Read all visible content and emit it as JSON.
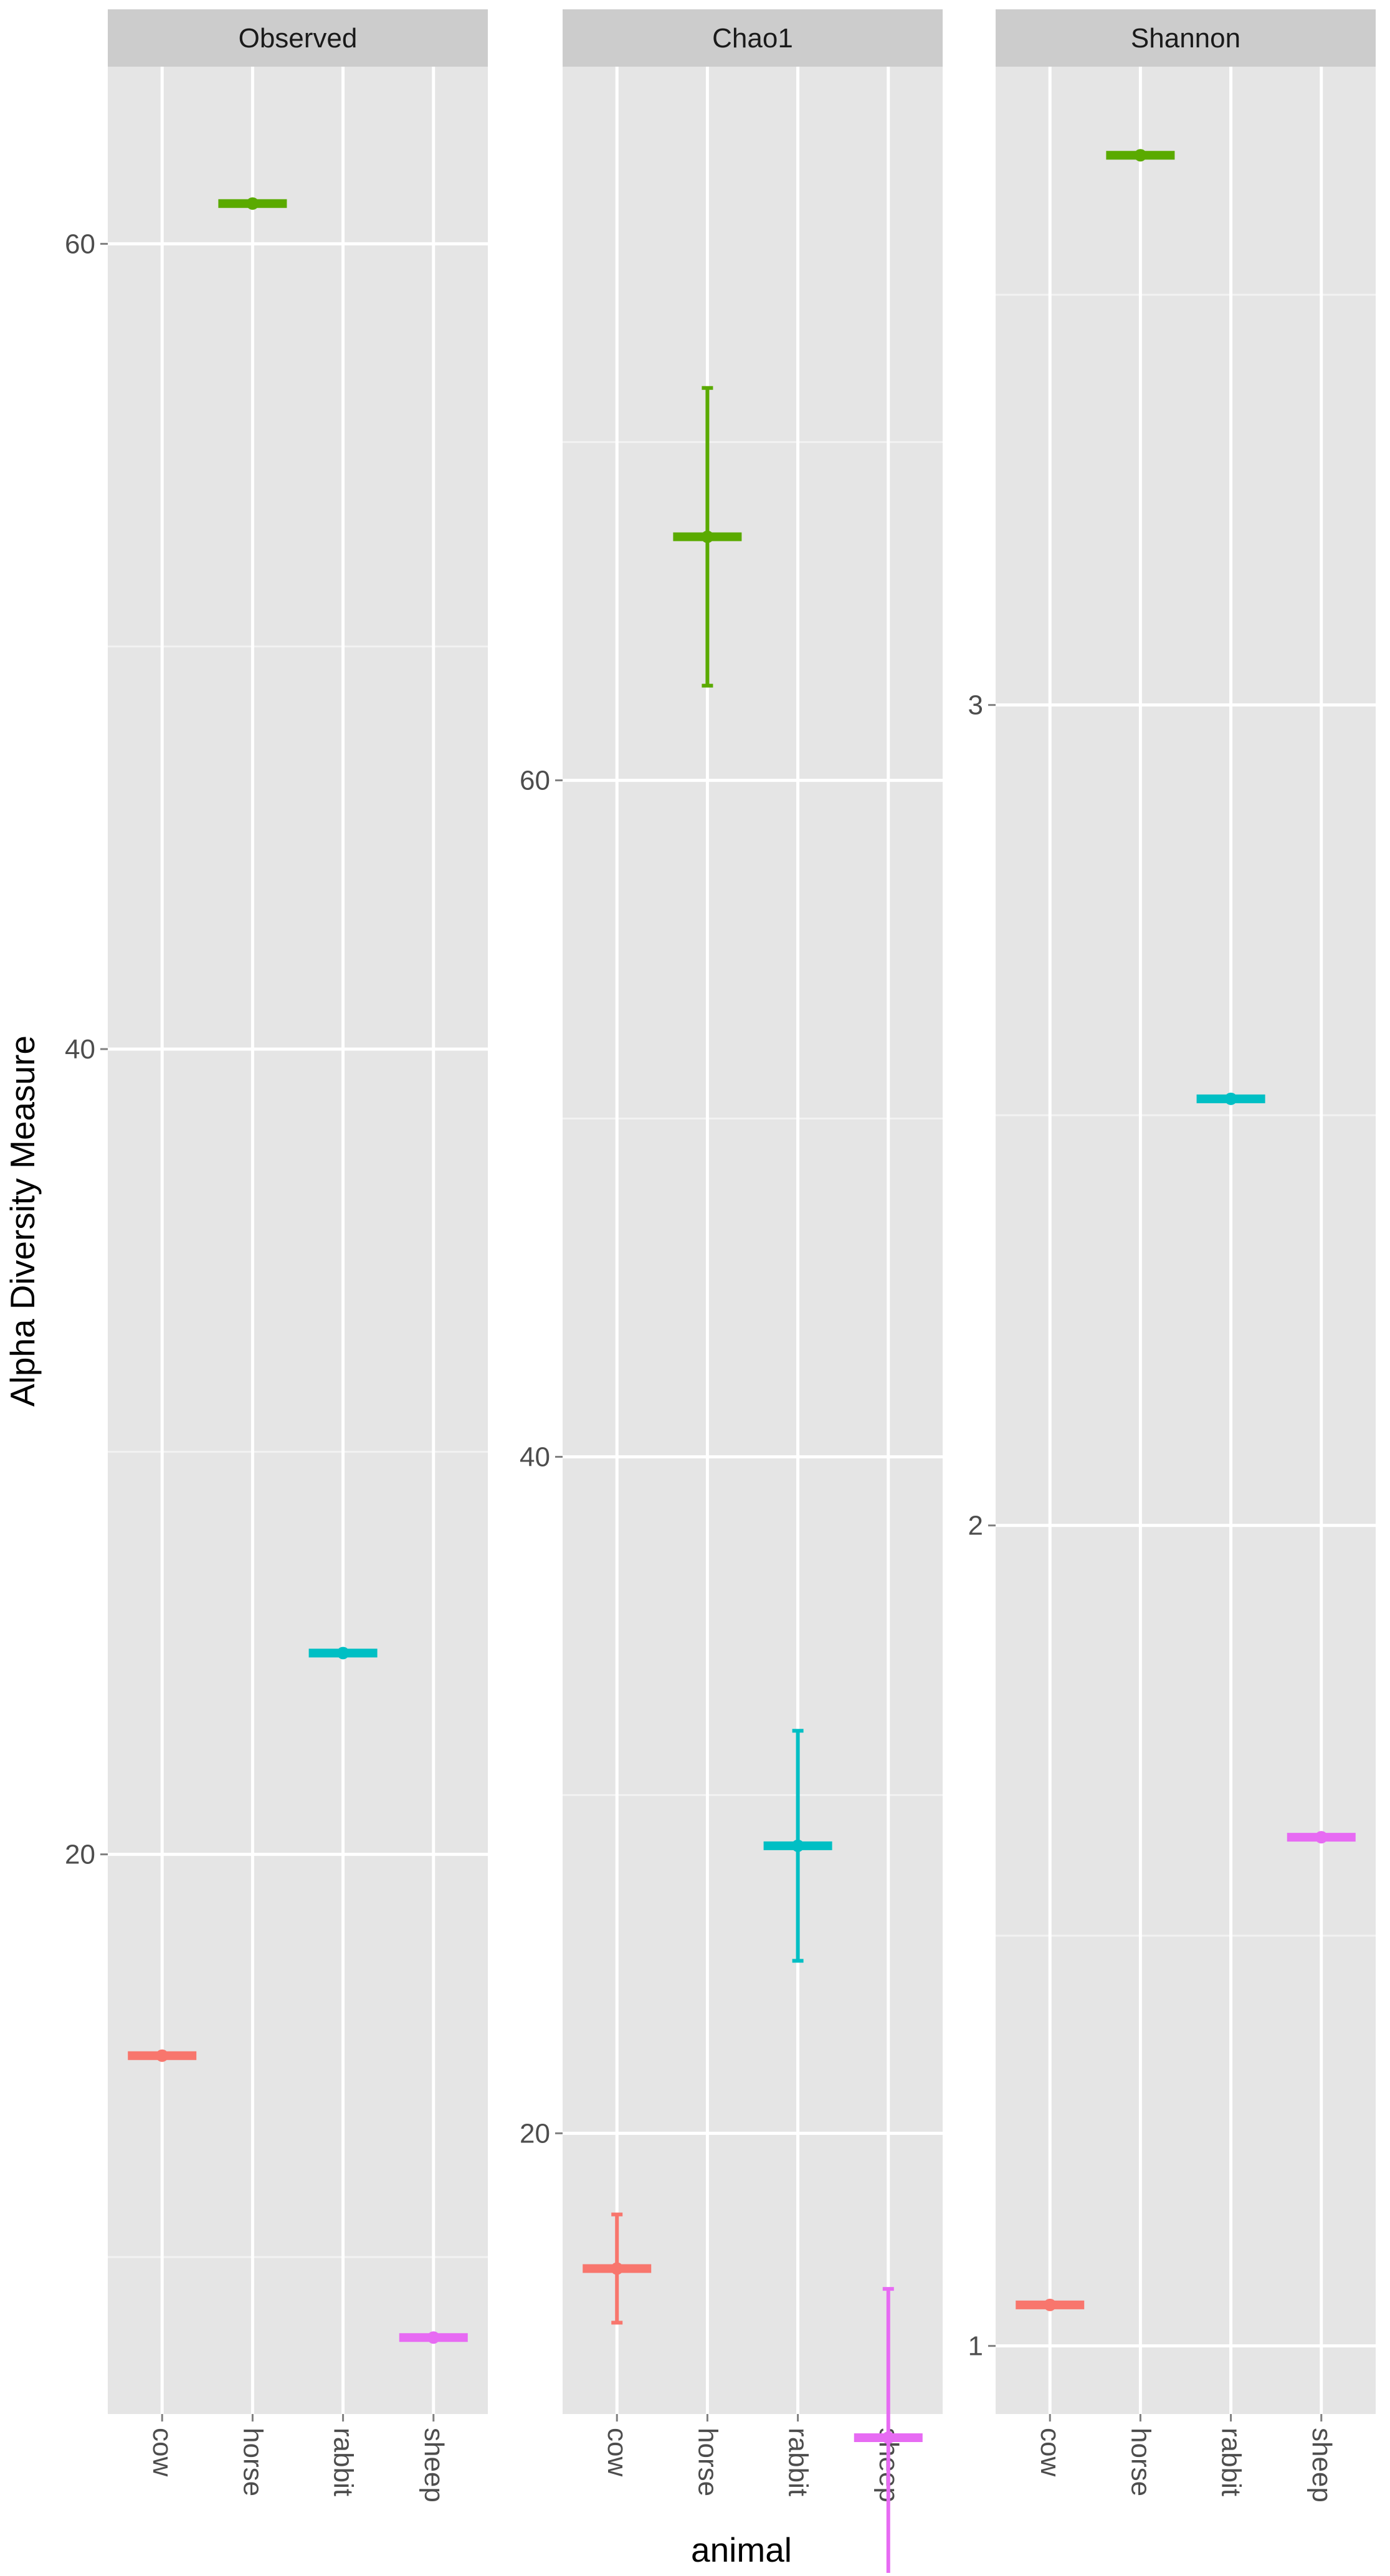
{
  "chart_data": {
    "type": "scatter",
    "ylabel": "Alpha Diversity Measure",
    "xlabel": "animal",
    "categories": [
      "cow",
      "horse",
      "rabbit",
      "sheep"
    ],
    "colors": {
      "cow": "#F8766D",
      "horse": "#5AAA00",
      "rabbit": "#00BFC4",
      "sheep": "#E76BF3",
      "panel_bg": "#E5E5E5",
      "strip_bg": "#CCCCCC",
      "grid": "#FFFFFF"
    },
    "grid": true,
    "legend": "none",
    "panels": [
      {
        "title": "Observed",
        "ylim": [
          6.1,
          64.4
        ],
        "yticks": [
          20,
          40,
          60
        ],
        "ytick_labels": [
          "20",
          "40",
          "60"
        ],
        "minor_ticks": [
          10,
          30,
          50
        ],
        "points": [
          {
            "category": "cow",
            "y": 15.0
          },
          {
            "category": "horse",
            "y": 61.0
          },
          {
            "category": "rabbit",
            "y": 25.0
          },
          {
            "category": "sheep",
            "y": 8.0
          }
        ]
      },
      {
        "title": "Chao1",
        "ylim": [
          11.7,
          81.1
        ],
        "yticks": [
          20,
          40,
          60
        ],
        "ytick_labels": [
          "20",
          "40",
          "60"
        ],
        "minor_ticks": [
          30,
          50,
          70
        ],
        "points": [
          {
            "category": "cow",
            "y": 16.0,
            "se": 1.6
          },
          {
            "category": "horse",
            "y": 67.2,
            "se": 4.4
          },
          {
            "category": "rabbit",
            "y": 28.5,
            "se": 3.4
          },
          {
            "category": "sheep",
            "y": 11.0,
            "se": 4.4
          }
        ]
      },
      {
        "title": "Shannon",
        "ylim": [
          0.917,
          3.778
        ],
        "yticks": [
          1,
          2,
          3
        ],
        "ytick_labels": [
          "1",
          "2",
          "3"
        ],
        "minor_ticks": [
          1.5,
          2.5,
          3.5
        ],
        "points": [
          {
            "category": "cow",
            "y": 1.05
          },
          {
            "category": "horse",
            "y": 3.67
          },
          {
            "category": "rabbit",
            "y": 2.52
          },
          {
            "category": "sheep",
            "y": 1.62
          }
        ]
      }
    ]
  }
}
